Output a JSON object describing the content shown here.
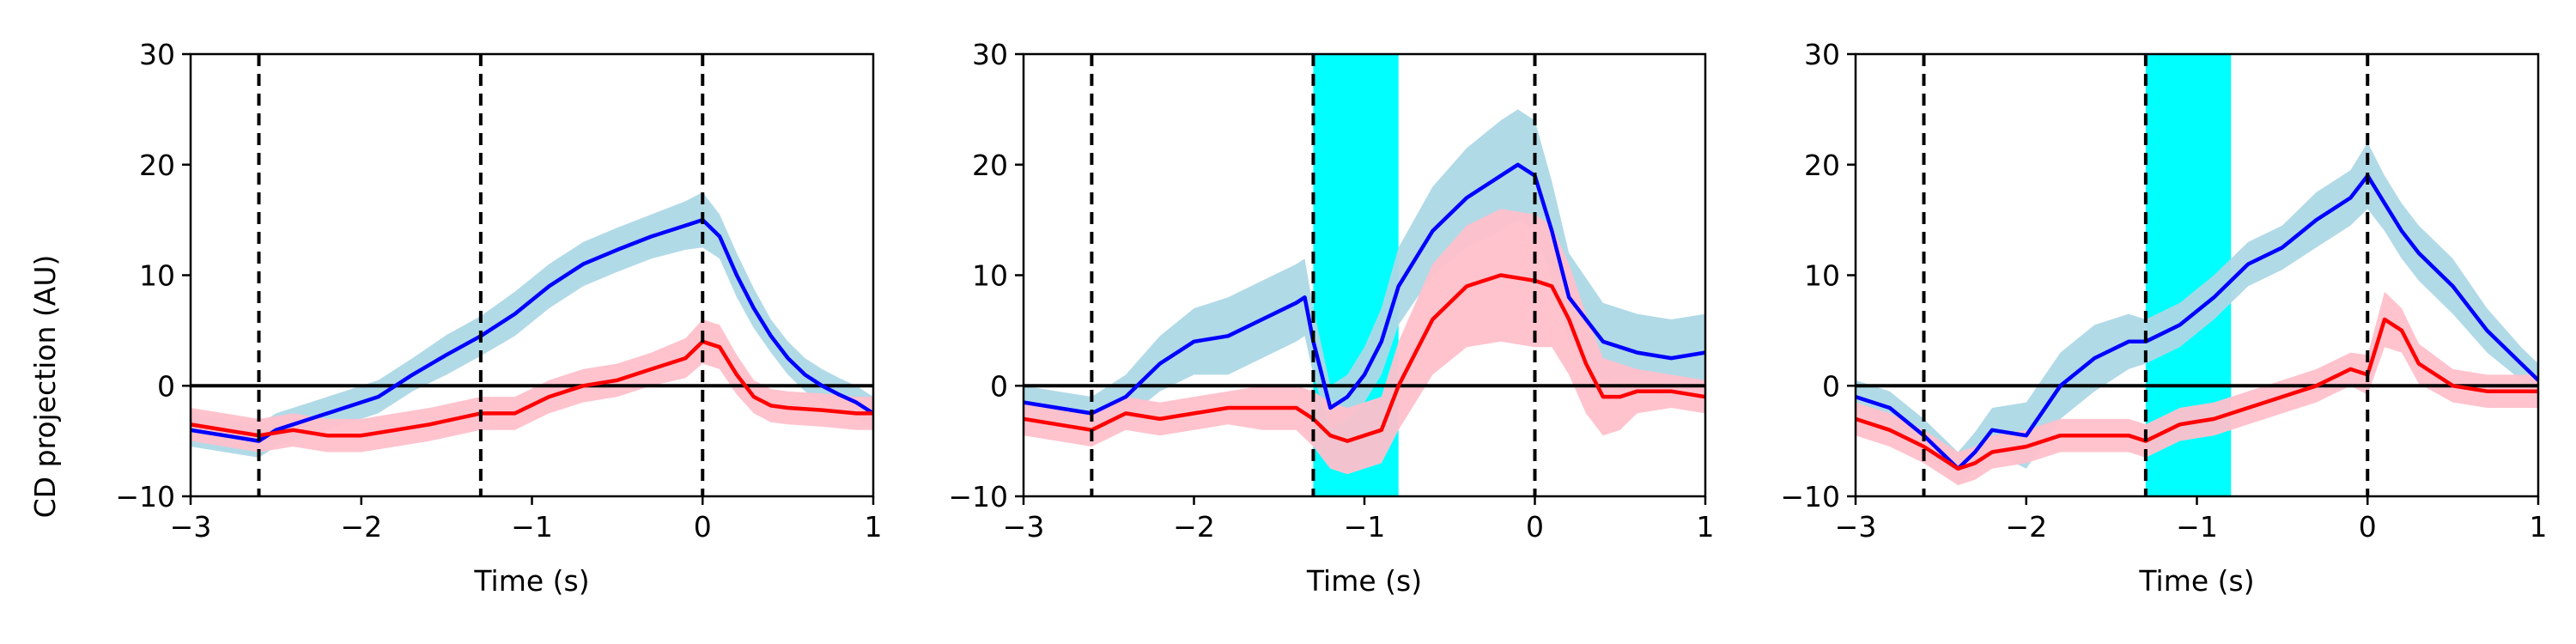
{
  "figure": {
    "ylabel": "CD projection (AU)",
    "xlabel": "Time (s)"
  },
  "colors": {
    "blue_line": "#0000ff",
    "blue_band": "#add8e6",
    "red_line": "#ff0000",
    "red_band": "#ffc0cb",
    "stim_patch": "#00ffff",
    "ref_lines": "#000000"
  },
  "chart_data": [
    {
      "type": "line",
      "xlabel": "Time (s)",
      "ylabel": "CD projection (AU)",
      "xlim": [
        -3,
        1
      ],
      "ylim": [
        -10,
        30
      ],
      "xticks": [
        -3,
        -2,
        -1,
        0,
        1
      ],
      "xtick_labels": [
        "−3",
        "−2",
        "−1",
        "0",
        "1"
      ],
      "yticks": [
        -10,
        0,
        10,
        20,
        30
      ],
      "ytick_labels": [
        "−10",
        "0",
        "10",
        "20",
        "30"
      ],
      "grid": false,
      "vlines_dashed": [
        -2.6,
        -1.3,
        0
      ],
      "hline": 0,
      "stim_window": null,
      "series": [
        {
          "color_key": "blue",
          "x": [
            -3.0,
            -2.8,
            -2.6,
            -2.5,
            -2.3,
            -2.1,
            -1.9,
            -1.7,
            -1.5,
            -1.3,
            -1.1,
            -0.9,
            -0.7,
            -0.5,
            -0.3,
            -0.1,
            0.0,
            0.1,
            0.2,
            0.3,
            0.4,
            0.5,
            0.6,
            0.7,
            0.8,
            0.9,
            1.0
          ],
          "values": [
            -4.0,
            -4.5,
            -5.0,
            -4.0,
            -3.0,
            -2.0,
            -1.0,
            1.0,
            2.8,
            4.5,
            6.5,
            9.0,
            11.0,
            12.3,
            13.5,
            14.5,
            15.0,
            13.5,
            10.0,
            7.0,
            4.5,
            2.5,
            1.0,
            0.0,
            -0.8,
            -1.5,
            -2.5
          ],
          "band_halfwidth": [
            1.5,
            1.5,
            1.5,
            1.5,
            1.5,
            1.5,
            1.5,
            1.5,
            1.8,
            1.8,
            2.0,
            2.0,
            2.0,
            2.0,
            2.0,
            2.2,
            2.5,
            2.0,
            2.0,
            1.8,
            1.5,
            1.5,
            1.5,
            1.5,
            1.5,
            1.5,
            1.5
          ]
        },
        {
          "color_key": "red",
          "x": [
            -3.0,
            -2.8,
            -2.6,
            -2.4,
            -2.2,
            -2.0,
            -1.8,
            -1.6,
            -1.3,
            -1.1,
            -0.9,
            -0.7,
            -0.5,
            -0.3,
            -0.1,
            0.0,
            0.1,
            0.2,
            0.3,
            0.4,
            0.5,
            0.7,
            0.9,
            1.0
          ],
          "values": [
            -3.5,
            -4.0,
            -4.5,
            -4.0,
            -4.5,
            -4.5,
            -4.0,
            -3.5,
            -2.5,
            -2.5,
            -1.0,
            0.0,
            0.5,
            1.5,
            2.5,
            4.0,
            3.5,
            1.0,
            -1.0,
            -1.8,
            -2.0,
            -2.2,
            -2.5,
            -2.5
          ],
          "band_halfwidth": [
            1.5,
            1.5,
            1.5,
            1.5,
            1.5,
            1.5,
            1.5,
            1.5,
            1.5,
            1.5,
            1.5,
            1.5,
            1.5,
            1.5,
            1.8,
            2.0,
            2.0,
            1.8,
            1.5,
            1.5,
            1.5,
            1.5,
            1.5,
            1.5
          ]
        }
      ]
    },
    {
      "type": "line",
      "xlabel": "Time (s)",
      "ylabel": "",
      "xlim": [
        -3,
        1
      ],
      "ylim": [
        -10,
        30
      ],
      "xticks": [
        -3,
        -2,
        -1,
        0,
        1
      ],
      "xtick_labels": [
        "−3",
        "−2",
        "−1",
        "0",
        "1"
      ],
      "yticks": [
        -10,
        0,
        10,
        20,
        30
      ],
      "ytick_labels": [
        "−10",
        "0",
        "10",
        "20",
        "30"
      ],
      "grid": false,
      "vlines_dashed": [
        -2.6,
        -1.3,
        0
      ],
      "hline": 0,
      "stim_window": [
        -1.3,
        -0.8
      ],
      "series": [
        {
          "color_key": "blue",
          "x": [
            -3.0,
            -2.8,
            -2.6,
            -2.4,
            -2.2,
            -2.0,
            -1.8,
            -1.6,
            -1.4,
            -1.35,
            -1.3,
            -1.2,
            -1.1,
            -1.0,
            -0.9,
            -0.8,
            -0.6,
            -0.4,
            -0.2,
            -0.1,
            0.0,
            0.1,
            0.2,
            0.4,
            0.6,
            0.8,
            1.0
          ],
          "values": [
            -1.5,
            -2.0,
            -2.5,
            -1.0,
            2.0,
            4.0,
            4.5,
            6.0,
            7.5,
            8.0,
            4.0,
            -2.0,
            -1.0,
            1.0,
            4.0,
            9.0,
            14.0,
            17.0,
            19.0,
            20.0,
            19.0,
            14.0,
            8.0,
            4.0,
            3.0,
            2.5,
            3.0
          ],
          "band_halfwidth": [
            1.5,
            1.5,
            1.5,
            2.0,
            2.5,
            3.0,
            3.5,
            3.5,
            3.5,
            3.5,
            3.0,
            2.0,
            2.0,
            2.5,
            3.0,
            3.5,
            4.0,
            4.5,
            5.0,
            5.0,
            5.0,
            4.5,
            4.0,
            3.5,
            3.5,
            3.5,
            3.5
          ]
        },
        {
          "color_key": "red",
          "x": [
            -3.0,
            -2.8,
            -2.6,
            -2.4,
            -2.2,
            -2.0,
            -1.8,
            -1.6,
            -1.4,
            -1.3,
            -1.2,
            -1.1,
            -1.0,
            -0.9,
            -0.8,
            -0.6,
            -0.4,
            -0.2,
            0.0,
            0.1,
            0.2,
            0.3,
            0.4,
            0.5,
            0.6,
            0.8,
            1.0
          ],
          "values": [
            -3.0,
            -3.5,
            -4.0,
            -2.5,
            -3.0,
            -2.5,
            -2.0,
            -2.0,
            -2.0,
            -3.0,
            -4.5,
            -5.0,
            -4.5,
            -4.0,
            0.0,
            6.0,
            9.0,
            10.0,
            9.5,
            9.0,
            6.0,
            2.0,
            -1.0,
            -1.0,
            -0.5,
            -0.5,
            -1.0
          ],
          "band_halfwidth": [
            1.5,
            1.5,
            1.5,
            1.5,
            1.5,
            1.5,
            1.5,
            2.0,
            2.0,
            2.5,
            3.0,
            3.0,
            3.0,
            3.0,
            4.0,
            5.0,
            5.5,
            6.0,
            6.0,
            5.5,
            5.0,
            4.5,
            3.5,
            3.0,
            2.0,
            1.5,
            1.5
          ]
        }
      ]
    },
    {
      "type": "line",
      "xlabel": "Time (s)",
      "ylabel": "",
      "xlim": [
        -3,
        1
      ],
      "ylim": [
        -10,
        30
      ],
      "xticks": [
        -3,
        -2,
        -1,
        0,
        1
      ],
      "xtick_labels": [
        "−3",
        "−2",
        "−1",
        "0",
        "1"
      ],
      "yticks": [
        -10,
        0,
        10,
        20,
        30
      ],
      "ytick_labels": [
        "−10",
        "0",
        "10",
        "20",
        "30"
      ],
      "grid": false,
      "vlines_dashed": [
        -2.6,
        -1.3,
        0
      ],
      "hline": 0,
      "stim_window": [
        -1.3,
        -0.8
      ],
      "series": [
        {
          "color_key": "blue",
          "x": [
            -3.0,
            -2.8,
            -2.6,
            -2.4,
            -2.3,
            -2.2,
            -2.0,
            -1.8,
            -1.6,
            -1.4,
            -1.3,
            -1.1,
            -0.9,
            -0.7,
            -0.5,
            -0.3,
            -0.1,
            0.0,
            0.1,
            0.2,
            0.3,
            0.5,
            0.7,
            0.9,
            1.0
          ],
          "values": [
            -1.0,
            -2.0,
            -4.5,
            -7.5,
            -6.0,
            -4.0,
            -4.5,
            0.0,
            2.5,
            4.0,
            4.0,
            5.5,
            8.0,
            11.0,
            12.5,
            15.0,
            17.0,
            19.0,
            16.5,
            14.0,
            12.0,
            9.0,
            5.0,
            2.0,
            0.5
          ],
          "band_halfwidth": [
            1.5,
            1.5,
            1.5,
            1.5,
            1.8,
            2.0,
            3.0,
            3.0,
            3.0,
            2.5,
            2.0,
            2.0,
            2.0,
            2.0,
            2.0,
            2.5,
            2.5,
            3.0,
            2.5,
            2.5,
            2.5,
            2.5,
            2.0,
            1.5,
            1.5
          ]
        },
        {
          "color_key": "red",
          "x": [
            -3.0,
            -2.8,
            -2.6,
            -2.4,
            -2.3,
            -2.2,
            -2.0,
            -1.8,
            -1.6,
            -1.4,
            -1.3,
            -1.1,
            -0.9,
            -0.7,
            -0.5,
            -0.3,
            -0.1,
            0.0,
            0.1,
            0.2,
            0.3,
            0.5,
            0.7,
            0.9,
            1.0
          ],
          "values": [
            -3.0,
            -4.0,
            -5.5,
            -7.5,
            -7.0,
            -6.0,
            -5.5,
            -4.5,
            -4.5,
            -4.5,
            -5.0,
            -3.5,
            -3.0,
            -2.0,
            -1.0,
            0.0,
            1.5,
            1.0,
            6.0,
            5.0,
            2.0,
            0.0,
            -0.5,
            -0.5,
            -0.5
          ],
          "band_halfwidth": [
            1.5,
            1.5,
            1.5,
            1.5,
            1.5,
            1.5,
            1.5,
            1.5,
            1.5,
            1.5,
            1.5,
            1.5,
            1.5,
            1.5,
            1.5,
            1.5,
            1.5,
            1.8,
            2.5,
            2.0,
            1.8,
            1.5,
            1.5,
            1.5,
            1.5
          ]
        }
      ]
    }
  ]
}
